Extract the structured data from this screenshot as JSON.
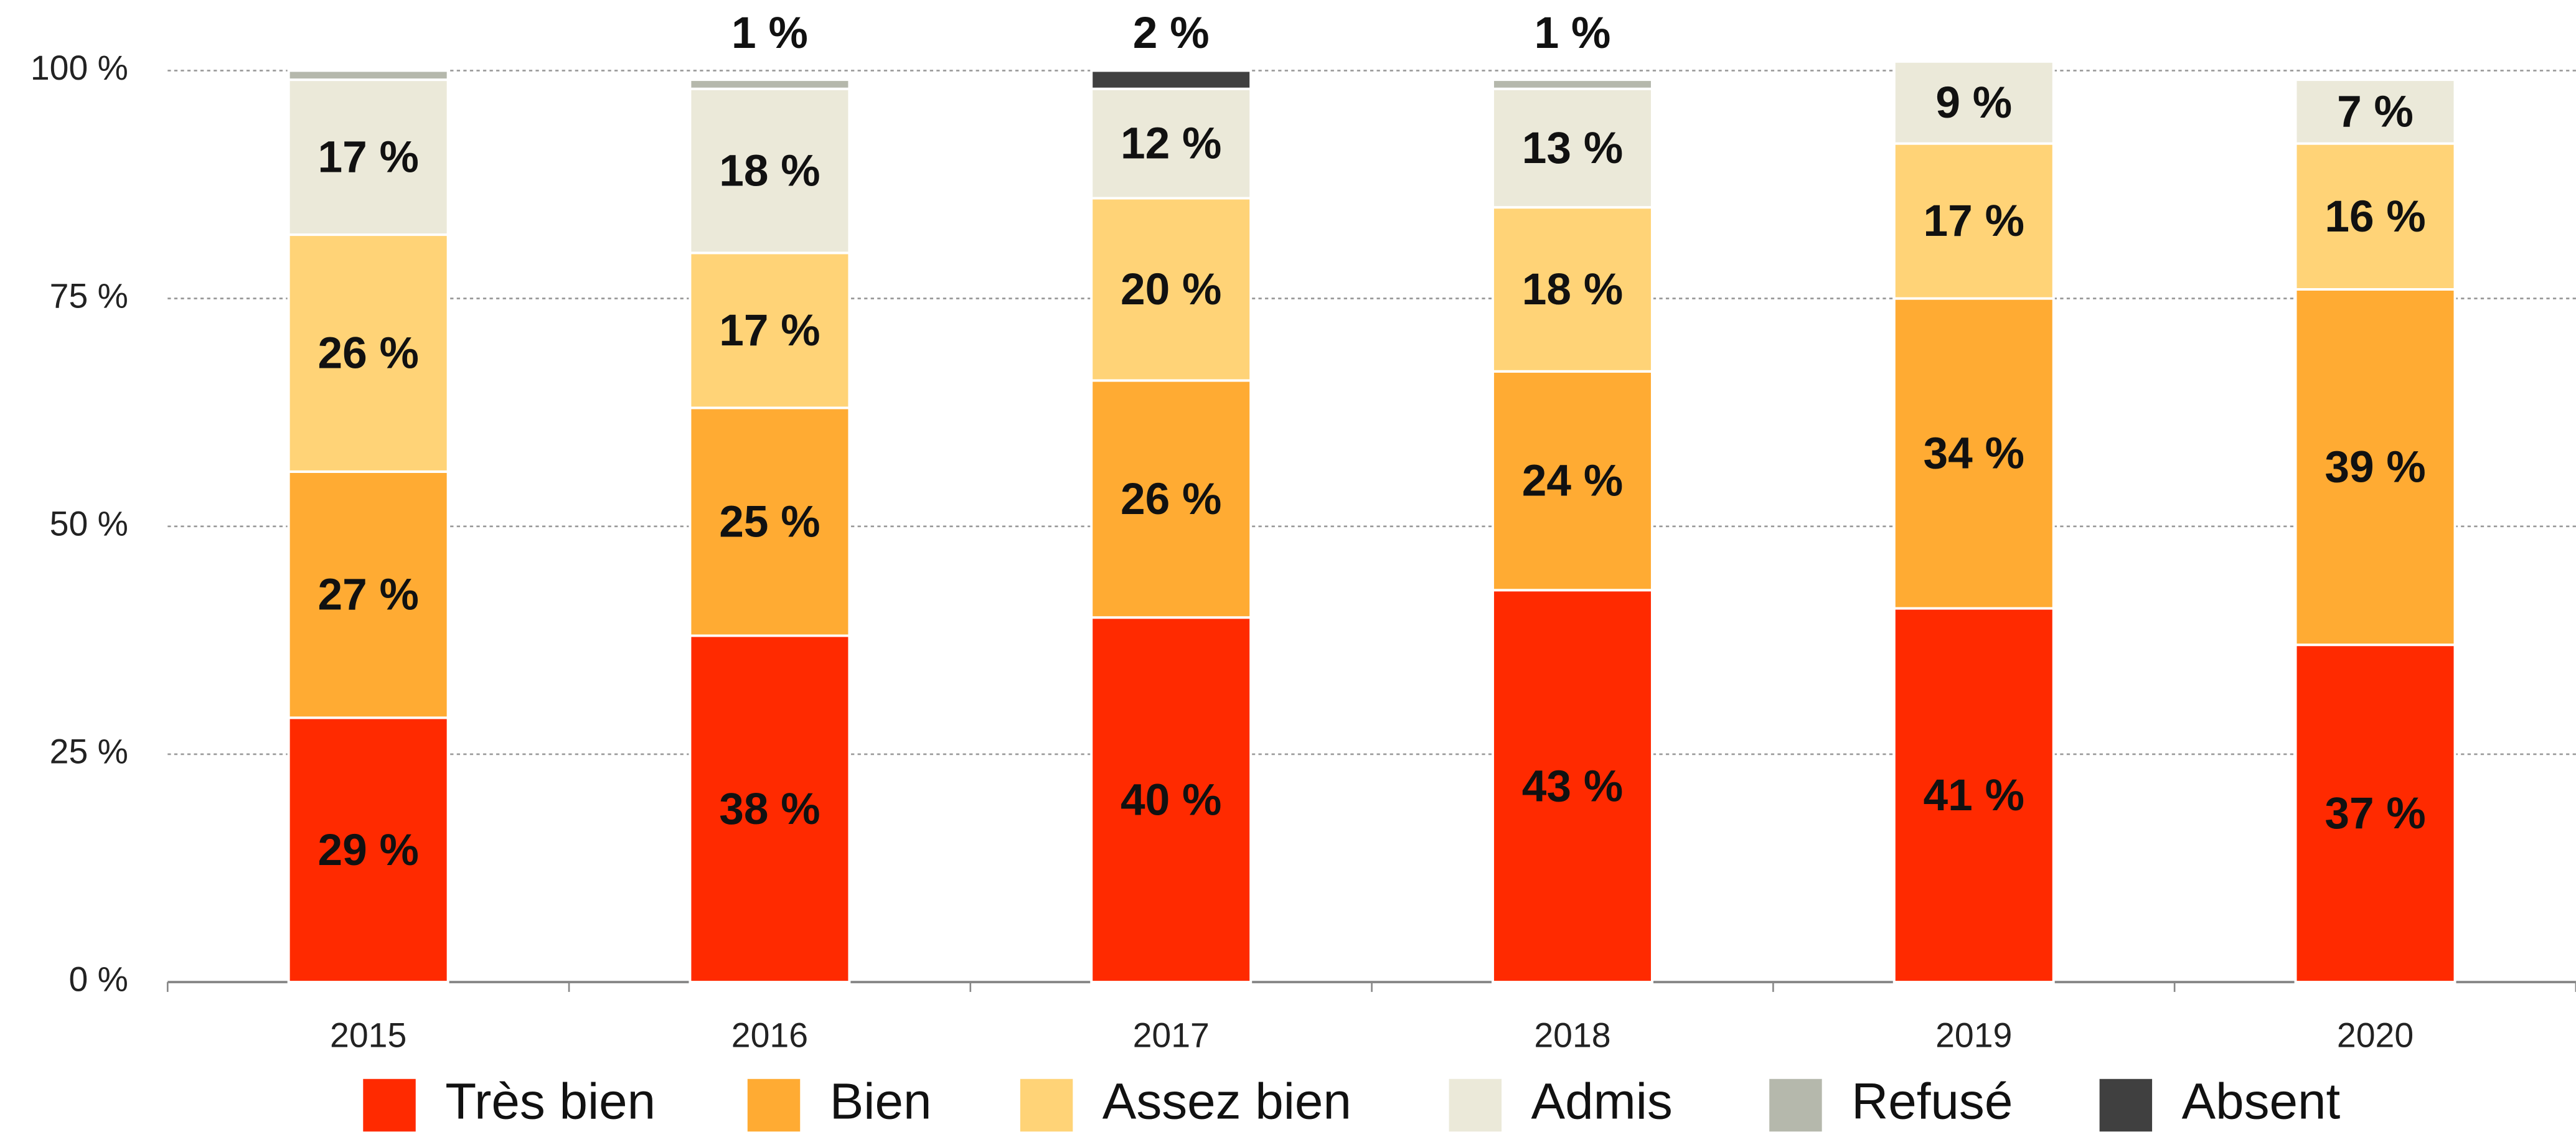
{
  "chart_data": {
    "type": "stacked_bar",
    "categories": [
      "2015",
      "2016",
      "2017",
      "2018",
      "2019",
      "2020"
    ],
    "series": [
      {
        "name": "Très bien",
        "color": "#ff2a00",
        "values": [
          29,
          38,
          40,
          43,
          41,
          37
        ],
        "value_labels": [
          "29 %",
          "38 %",
          "40 %",
          "43 %",
          "41 %",
          "37 %"
        ]
      },
      {
        "name": "Bien",
        "color": "#ffab33",
        "values": [
          27,
          25,
          26,
          24,
          34,
          39
        ],
        "value_labels": [
          "27 %",
          "25 %",
          "26 %",
          "24 %",
          "34 %",
          "39 %"
        ]
      },
      {
        "name": "Assez bien",
        "color": "#ffd377",
        "values": [
          26,
          17,
          20,
          18,
          17,
          16
        ],
        "value_labels": [
          "26 %",
          "17 %",
          "20 %",
          "18 %",
          "17 %",
          "16 %"
        ]
      },
      {
        "name": "Admis",
        "color": "#ebe9d9",
        "values": [
          17,
          18,
          12,
          13,
          9,
          7
        ],
        "value_labels": [
          "17 %",
          "18 %",
          "12 %",
          "13 %",
          "9 %",
          "7 %"
        ]
      },
      {
        "name": "Refusé",
        "color": "#b5b8ac",
        "values": [
          1,
          1,
          0,
          1,
          0,
          0
        ],
        "value_labels": [
          null,
          "1 %",
          null,
          "1 %",
          null,
          null
        ]
      },
      {
        "name": "Absent",
        "color": "#404040",
        "values": [
          0,
          0,
          2,
          0,
          0,
          0
        ],
        "value_labels": [
          null,
          null,
          "2 %",
          null,
          null,
          null
        ]
      }
    ],
    "ylim": [
      0,
      100
    ],
    "yticks": [
      {
        "value": 0,
        "label": "0 %"
      },
      {
        "value": 25,
        "label": "25 %"
      },
      {
        "value": 50,
        "label": "50 %"
      },
      {
        "value": 75,
        "label": "75 %"
      },
      {
        "value": 100,
        "label": "100 %"
      }
    ],
    "grid": true,
    "legend": "bottom"
  }
}
